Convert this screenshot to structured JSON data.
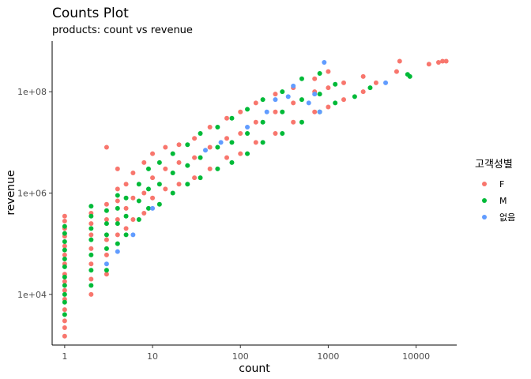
{
  "chart_data": {
    "type": "scatter",
    "title": "Counts Plot",
    "subtitle": "products: count vs revenue",
    "xlabel": "count",
    "ylabel": "revenue",
    "x_scale": "log10",
    "y_scale": "log10",
    "xlim": [
      0.72,
      29000
    ],
    "ylim": [
      1000,
      1000000000
    ],
    "x_ticks": [
      1,
      10,
      100,
      1000,
      10000
    ],
    "x_tick_labels": [
      "1",
      "10",
      "100",
      "1000",
      "10000"
    ],
    "y_ticks": [
      10000,
      1000000,
      100000000
    ],
    "y_tick_labels": [
      "1e+04",
      "1e+06",
      "1e+08"
    ],
    "grid": false,
    "legend": {
      "title": "고객성별",
      "position": "right",
      "entries": [
        {
          "label": "F",
          "color": "#F8766D"
        },
        {
          "label": "M",
          "color": "#00BA38"
        },
        {
          "label": "없음",
          "color": "#619CFF"
        }
      ]
    },
    "series": [
      {
        "name": "F",
        "color": "#F8766D",
        "points": [
          [
            1,
            1500
          ],
          [
            1,
            2200
          ],
          [
            1,
            3000
          ],
          [
            1,
            5000
          ],
          [
            1,
            8000
          ],
          [
            1,
            12000
          ],
          [
            1,
            18000
          ],
          [
            1,
            25000
          ],
          [
            1,
            40000
          ],
          [
            1,
            60000
          ],
          [
            1,
            90000
          ],
          [
            1,
            140000
          ],
          [
            1,
            200000
          ],
          [
            1,
            280000
          ],
          [
            1,
            350000
          ],
          [
            2,
            10000
          ],
          [
            2,
            20000
          ],
          [
            2,
            40000
          ],
          [
            2,
            80000
          ],
          [
            2,
            150000
          ],
          [
            2,
            250000
          ],
          [
            2,
            400000
          ],
          [
            3,
            25000
          ],
          [
            3,
            60000
          ],
          [
            3,
            120000
          ],
          [
            3,
            300000
          ],
          [
            3,
            600000
          ],
          [
            3,
            8000000
          ],
          [
            4,
            150000
          ],
          [
            4,
            300000
          ],
          [
            4,
            700000
          ],
          [
            4,
            1200000
          ],
          [
            4,
            3000000
          ],
          [
            5,
            200000
          ],
          [
            5,
            500000
          ],
          [
            5,
            1500000
          ],
          [
            6,
            300000
          ],
          [
            6,
            800000
          ],
          [
            6,
            2500000
          ],
          [
            8,
            400000
          ],
          [
            8,
            1000000
          ],
          [
            8,
            4000000
          ],
          [
            10,
            800000
          ],
          [
            10,
            2000000
          ],
          [
            10,
            6000000
          ],
          [
            14,
            1200000
          ],
          [
            14,
            3000000
          ],
          [
            14,
            8000000
          ],
          [
            20,
            1500000
          ],
          [
            20,
            4000000
          ],
          [
            20,
            9000000
          ],
          [
            30,
            2000000
          ],
          [
            30,
            5000000
          ],
          [
            30,
            12000000
          ],
          [
            45,
            3000000
          ],
          [
            45,
            8000000
          ],
          [
            45,
            20000000
          ],
          [
            70,
            5000000
          ],
          [
            70,
            12000000
          ],
          [
            70,
            30000000
          ],
          [
            100,
            6000000
          ],
          [
            100,
            15000000
          ],
          [
            100,
            40000000
          ],
          [
            150,
            10000000
          ],
          [
            150,
            25000000
          ],
          [
            150,
            60000000
          ],
          [
            250,
            15000000
          ],
          [
            250,
            40000000
          ],
          [
            250,
            90000000
          ],
          [
            400,
            25000000
          ],
          [
            400,
            60000000
          ],
          [
            400,
            120000000
          ],
          [
            700,
            40000000
          ],
          [
            700,
            100000000
          ],
          [
            700,
            180000000
          ],
          [
            1000,
            50000000
          ],
          [
            1000,
            120000000
          ],
          [
            1000,
            250000000
          ],
          [
            1500,
            70000000
          ],
          [
            1500,
            150000000
          ],
          [
            2500,
            100000000
          ],
          [
            2500,
            200000000
          ],
          [
            3500,
            150000000
          ],
          [
            6000,
            250000000
          ],
          [
            6500,
            400000000
          ],
          [
            14000,
            350000000
          ],
          [
            18000,
            380000000
          ],
          [
            20000,
            400000000
          ],
          [
            22000,
            400000000
          ]
        ]
      },
      {
        "name": "M",
        "color": "#00BA38",
        "points": [
          [
            1,
            4000
          ],
          [
            1,
            7000
          ],
          [
            1,
            10000
          ],
          [
            1,
            15000
          ],
          [
            1,
            22000
          ],
          [
            1,
            35000
          ],
          [
            1,
            50000
          ],
          [
            1,
            75000
          ],
          [
            1,
            110000
          ],
          [
            1,
            160000
          ],
          [
            1,
            220000
          ],
          [
            2,
            15000
          ],
          [
            2,
            30000
          ],
          [
            2,
            60000
          ],
          [
            2,
            120000
          ],
          [
            2,
            200000
          ],
          [
            2,
            350000
          ],
          [
            2,
            550000
          ],
          [
            3,
            30000
          ],
          [
            3,
            80000
          ],
          [
            3,
            150000
          ],
          [
            3,
            250000
          ],
          [
            3,
            450000
          ],
          [
            4,
            100000
          ],
          [
            4,
            250000
          ],
          [
            4,
            500000
          ],
          [
            4,
            900000
          ],
          [
            5,
            150000
          ],
          [
            5,
            350000
          ],
          [
            5,
            800000
          ],
          [
            7,
            300000
          ],
          [
            7,
            700000
          ],
          [
            7,
            1500000
          ],
          [
            9,
            500000
          ],
          [
            9,
            1200000
          ],
          [
            9,
            3000000
          ],
          [
            12,
            600000
          ],
          [
            12,
            1500000
          ],
          [
            12,
            4000000
          ],
          [
            17,
            1000000
          ],
          [
            17,
            2500000
          ],
          [
            17,
            6000000
          ],
          [
            25,
            1500000
          ],
          [
            25,
            3500000
          ],
          [
            25,
            9000000
          ],
          [
            35,
            2000000
          ],
          [
            35,
            5000000
          ],
          [
            35,
            15000000
          ],
          [
            55,
            3000000
          ],
          [
            55,
            8000000
          ],
          [
            55,
            20000000
          ],
          [
            80,
            4000000
          ],
          [
            80,
            10000000
          ],
          [
            80,
            30000000
          ],
          [
            120,
            6000000
          ],
          [
            120,
            15000000
          ],
          [
            120,
            45000000
          ],
          [
            180,
            10000000
          ],
          [
            180,
            25000000
          ],
          [
            180,
            70000000
          ],
          [
            300,
            15000000
          ],
          [
            300,
            40000000
          ],
          [
            300,
            100000000
          ],
          [
            500,
            25000000
          ],
          [
            500,
            70000000
          ],
          [
            500,
            180000000
          ],
          [
            800,
            40000000
          ],
          [
            800,
            90000000
          ],
          [
            800,
            230000000
          ],
          [
            1200,
            60000000
          ],
          [
            1200,
            140000000
          ],
          [
            2000,
            80000000
          ],
          [
            3000,
            120000000
          ],
          [
            8000,
            220000000
          ],
          [
            8500,
            200000000
          ]
        ]
      },
      {
        "name": "없음",
        "color": "#619CFF",
        "points": [
          [
            3,
            40000
          ],
          [
            4,
            70000
          ],
          [
            6,
            150000
          ],
          [
            10,
            500000
          ],
          [
            40,
            7000000
          ],
          [
            60,
            10000000
          ],
          [
            120,
            20000000
          ],
          [
            200,
            40000000
          ],
          [
            250,
            70000000
          ],
          [
            350,
            80000000
          ],
          [
            400,
            130000000
          ],
          [
            600,
            60000000
          ],
          [
            700,
            90000000
          ],
          [
            800,
            40000000
          ],
          [
            900,
            380000000
          ],
          [
            4500,
            150000000
          ]
        ]
      }
    ]
  }
}
